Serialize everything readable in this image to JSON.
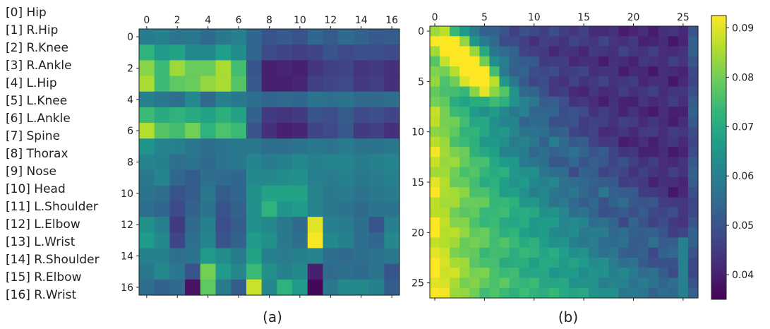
{
  "legend": {
    "items": [
      "[0] Hip",
      "[1] R.Hip",
      "[2] R.Knee",
      "[3] R.Ankle",
      "[4] L.Hip",
      "[5] L.Knee",
      "[6] L.Ankle",
      "[7] Spine",
      "[8] Thorax",
      "[9] Nose",
      "[10] Head",
      "[11] L.Shoulder",
      "[12] L.Elbow",
      "[13] L.Wrist",
      "[14] R.Shoulder",
      "[15] R.Elbow",
      "[16] R.Wrist"
    ]
  },
  "colormap": {
    "name": "viridis",
    "stops": [
      "#440154",
      "#482878",
      "#3e4989",
      "#31688e",
      "#26828e",
      "#1f9e89",
      "#35b779",
      "#6ece58",
      "#b5de2b",
      "#fde725"
    ]
  },
  "chart_data": [
    {
      "type": "heatmap",
      "caption": "(a)",
      "size": 17,
      "x_ticks": [
        0,
        2,
        4,
        6,
        8,
        10,
        12,
        14,
        16
      ],
      "y_ticks": [
        0,
        2,
        4,
        6,
        8,
        10,
        12,
        14,
        16
      ],
      "vmin": 0.035,
      "vmax": 0.0925,
      "values": [
        [
          0.059,
          0.06,
          0.057,
          0.058,
          0.055,
          0.058,
          0.06,
          0.054,
          0.05,
          0.051,
          0.05,
          0.054,
          0.052,
          0.055,
          0.053,
          0.051,
          0.052
        ],
        [
          0.072,
          0.066,
          0.068,
          0.062,
          0.062,
          0.067,
          0.063,
          0.054,
          0.048,
          0.047,
          0.046,
          0.047,
          0.05,
          0.048,
          0.049,
          0.049,
          0.048
        ],
        [
          0.082,
          0.074,
          0.084,
          0.079,
          0.079,
          0.085,
          0.075,
          0.05,
          0.04,
          0.041,
          0.04,
          0.044,
          0.046,
          0.047,
          0.044,
          0.045,
          0.043
        ],
        [
          0.085,
          0.074,
          0.078,
          0.079,
          0.083,
          0.085,
          0.077,
          0.051,
          0.04,
          0.04,
          0.041,
          0.046,
          0.047,
          0.048,
          0.045,
          0.046,
          0.043
        ],
        [
          0.06,
          0.058,
          0.056,
          0.062,
          0.055,
          0.06,
          0.058,
          0.056,
          0.054,
          0.055,
          0.054,
          0.057,
          0.056,
          0.057,
          0.055,
          0.055,
          0.056
        ],
        [
          0.074,
          0.07,
          0.072,
          0.07,
          0.068,
          0.071,
          0.068,
          0.053,
          0.045,
          0.044,
          0.045,
          0.05,
          0.049,
          0.052,
          0.048,
          0.049,
          0.047
        ],
        [
          0.086,
          0.077,
          0.075,
          0.08,
          0.072,
          0.076,
          0.074,
          0.05,
          0.043,
          0.04,
          0.041,
          0.047,
          0.048,
          0.051,
          0.045,
          0.046,
          0.043
        ],
        [
          0.065,
          0.061,
          0.06,
          0.058,
          0.056,
          0.057,
          0.058,
          0.058,
          0.056,
          0.056,
          0.057,
          0.058,
          0.057,
          0.059,
          0.057,
          0.057,
          0.058
        ],
        [
          0.061,
          0.06,
          0.056,
          0.057,
          0.055,
          0.057,
          0.058,
          0.061,
          0.059,
          0.06,
          0.062,
          0.06,
          0.061,
          0.061,
          0.059,
          0.06,
          0.061
        ],
        [
          0.058,
          0.061,
          0.054,
          0.052,
          0.056,
          0.055,
          0.054,
          0.062,
          0.062,
          0.063,
          0.064,
          0.06,
          0.059,
          0.06,
          0.058,
          0.059,
          0.06
        ],
        [
          0.057,
          0.056,
          0.05,
          0.052,
          0.058,
          0.052,
          0.054,
          0.064,
          0.068,
          0.068,
          0.068,
          0.061,
          0.058,
          0.059,
          0.057,
          0.058,
          0.059
        ],
        [
          0.056,
          0.054,
          0.048,
          0.053,
          0.057,
          0.05,
          0.053,
          0.064,
          0.072,
          0.065,
          0.066,
          0.061,
          0.058,
          0.057,
          0.055,
          0.057,
          0.057
        ],
        [
          0.064,
          0.06,
          0.045,
          0.055,
          0.06,
          0.049,
          0.052,
          0.064,
          0.062,
          0.058,
          0.055,
          0.09,
          0.06,
          0.059,
          0.056,
          0.05,
          0.06
        ],
        [
          0.066,
          0.062,
          0.047,
          0.056,
          0.061,
          0.05,
          0.053,
          0.066,
          0.064,
          0.058,
          0.056,
          0.092,
          0.062,
          0.06,
          0.056,
          0.054,
          0.062
        ],
        [
          0.06,
          0.06,
          0.056,
          0.057,
          0.066,
          0.063,
          0.059,
          0.068,
          0.06,
          0.059,
          0.06,
          0.061,
          0.056,
          0.055,
          0.056,
          0.057,
          0.058
        ],
        [
          0.058,
          0.062,
          0.058,
          0.05,
          0.08,
          0.066,
          0.062,
          0.074,
          0.064,
          0.06,
          0.062,
          0.04,
          0.055,
          0.056,
          0.055,
          0.057,
          0.05
        ],
        [
          0.056,
          0.053,
          0.055,
          0.038,
          0.078,
          0.059,
          0.052,
          0.088,
          0.062,
          0.072,
          0.066,
          0.036,
          0.058,
          0.062,
          0.062,
          0.06,
          0.052
        ]
      ]
    },
    {
      "type": "heatmap",
      "caption": "(b)",
      "size": 27,
      "x_ticks": [
        0,
        5,
        10,
        15,
        20,
        25
      ],
      "y_ticks": [
        0,
        5,
        10,
        15,
        20,
        25
      ],
      "vmin": 0.035,
      "vmax": 0.0925,
      "description": "band of high values near the diagonal for rows/cols 0–8 (peak ≈ 0.092 around rows 2–4, cols 3–4), mid values 0.055–0.065 along the left columns, decaying to ≈ 0.04 toward the upper right"
    }
  ],
  "colorbar": {
    "ticks": [
      0.04,
      0.05,
      0.06,
      0.07,
      0.08,
      0.09
    ],
    "tick_labels": [
      "0.04",
      "0.05",
      "0.06",
      "0.07",
      "0.08",
      "0.09"
    ]
  }
}
